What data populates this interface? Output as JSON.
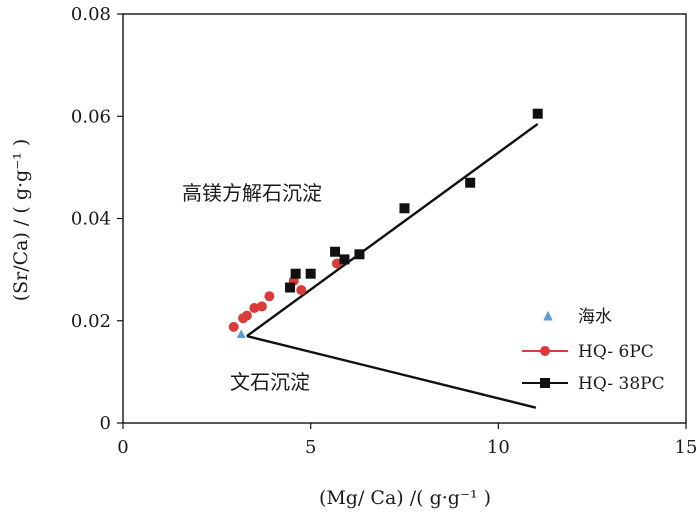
{
  "chart_data": {
    "type": "scatter",
    "title": "",
    "xlabel": "(Mg/ Ca) /( g·g⁻¹ )",
    "ylabel": "(Sr/Ca) / ( g·g⁻¹ )",
    "xlim": [
      0,
      15
    ],
    "ylim": [
      0,
      0.08
    ],
    "x_ticks": [
      0,
      5,
      10,
      15
    ],
    "x_tick_labels": [
      "0",
      "5",
      "10",
      "15"
    ],
    "y_ticks": [
      0,
      0.02,
      0.04,
      0.06,
      0.08
    ],
    "y_tick_labels": [
      "0",
      "0.02",
      "0.04",
      "0.06",
      "0.08"
    ],
    "grid": false,
    "legend_position": "bottom-right",
    "annotations": [
      {
        "text": "高镁方解石沉淀",
        "x": 4.0,
        "y": 0.044
      },
      {
        "text": "文石沉淀",
        "x": 4.0,
        "y": 0.0075
      }
    ],
    "lines": [
      {
        "name": "upper-boundary",
        "x": [
          3.3,
          11.05
        ],
        "y": [
          0.017,
          0.0585
        ],
        "color": "#111111"
      },
      {
        "name": "lower-boundary",
        "x": [
          3.3,
          11.0
        ],
        "y": [
          0.017,
          0.003
        ],
        "color": "#111111"
      }
    ],
    "series": [
      {
        "name": "海水",
        "marker": "triangle",
        "color": "#5a9bd5",
        "x": [
          3.15
        ],
        "y": [
          0.0173
        ]
      },
      {
        "name": "HQ- 6PC",
        "marker": "circle",
        "color": "#d93a3a",
        "x": [
          2.95,
          3.2,
          3.3,
          3.5,
          3.7,
          3.9,
          4.55,
          4.75,
          5.7
        ],
        "y": [
          0.0188,
          0.0205,
          0.021,
          0.0225,
          0.0228,
          0.0248,
          0.0278,
          0.026,
          0.0312
        ]
      },
      {
        "name": "HQ- 38PC",
        "marker": "square",
        "color": "#111111",
        "x": [
          4.45,
          4.6,
          5.0,
          5.65,
          5.9,
          6.3,
          7.5,
          9.25,
          11.05
        ],
        "y": [
          0.0265,
          0.0292,
          0.0292,
          0.0335,
          0.032,
          0.033,
          0.042,
          0.047,
          0.0605
        ]
      }
    ]
  }
}
